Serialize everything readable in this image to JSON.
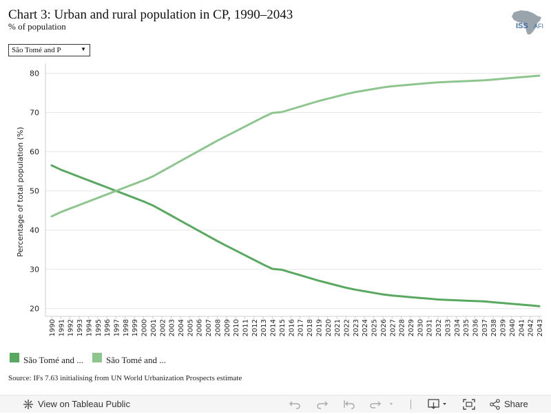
{
  "header": {
    "title": "Chart 3: Urban and rural population in CP, 1990–2043",
    "subtitle": "% of population",
    "logo_text_left": "ISS",
    "logo_text_right": "AFI"
  },
  "filter": {
    "selected": "São Tomé and P"
  },
  "colors": {
    "series_dark": "#59a85f",
    "series_light": "#8cc68e",
    "gridline": "#e6e6e6",
    "logo_grey": "#9aa4ad",
    "logo_blue": "#3d6e9e"
  },
  "legend": [
    {
      "label": "São Tomé and ..."
    },
    {
      "label": "São Tomé and ..."
    }
  ],
  "source": "Source: IFs 7.63 initialising from UN World Urbanization Prospects estimate",
  "toolbar": {
    "view_label": "View on Tableau Public",
    "share_label": "Share"
  },
  "chart_data": {
    "type": "line",
    "ylabel": "Percentage of total population (%)",
    "xlabel": "",
    "ylim": [
      18,
      81.5
    ],
    "yticks": [
      20,
      30,
      40,
      50,
      60,
      70,
      80
    ],
    "grid": "horizontal",
    "categories": [
      "1990",
      "1991",
      "1992",
      "1993",
      "1994",
      "1995",
      "1996",
      "1997",
      "1998",
      "1999",
      "2000",
      "2001",
      "2002",
      "2003",
      "2004",
      "2005",
      "2006",
      "2007",
      "2008",
      "2009",
      "2010",
      "2011",
      "2012",
      "2013",
      "2014",
      "2015",
      "2016",
      "2017",
      "2018",
      "2019",
      "2020",
      "2021",
      "2022",
      "2023",
      "2024",
      "2025",
      "2026",
      "2027",
      "2028",
      "2029",
      "2030",
      "2031",
      "2032",
      "2033",
      "2034",
      "2035",
      "2036",
      "2037",
      "2038",
      "2039",
      "2040",
      "2041",
      "2042",
      "2043"
    ],
    "series": [
      {
        "values": [
          56.5,
          55.4,
          54.5,
          53.6,
          52.7,
          51.8,
          50.9,
          50.0,
          49.1,
          48.2,
          47.3,
          46.3,
          45.0,
          43.7,
          42.4,
          41.1,
          39.8,
          38.5,
          37.2,
          36.0,
          34.8,
          33.6,
          32.4,
          31.2,
          30.1,
          29.9,
          29.2,
          28.5,
          27.8,
          27.1,
          26.5,
          25.9,
          25.3,
          24.8,
          24.4,
          24.0,
          23.6,
          23.3,
          23.1,
          22.9,
          22.7,
          22.5,
          22.3,
          22.2,
          22.1,
          22.0,
          21.9,
          21.8,
          21.6,
          21.4,
          21.2,
          21.0,
          20.8,
          20.6
        ],
        "color_key": "series_dark"
      },
      {
        "values": [
          43.5,
          44.6,
          45.5,
          46.4,
          47.3,
          48.2,
          49.1,
          50.0,
          50.9,
          51.8,
          52.7,
          53.7,
          55.0,
          56.3,
          57.6,
          58.9,
          60.2,
          61.5,
          62.8,
          64.0,
          65.2,
          66.4,
          67.6,
          68.8,
          69.9,
          70.1,
          70.8,
          71.5,
          72.2,
          72.9,
          73.5,
          74.1,
          74.7,
          75.2,
          75.6,
          76.0,
          76.4,
          76.7,
          76.9,
          77.1,
          77.3,
          77.5,
          77.7,
          77.8,
          77.9,
          78.0,
          78.1,
          78.2,
          78.4,
          78.6,
          78.8,
          79.0,
          79.2,
          79.4
        ],
        "color_key": "series_light"
      }
    ]
  }
}
